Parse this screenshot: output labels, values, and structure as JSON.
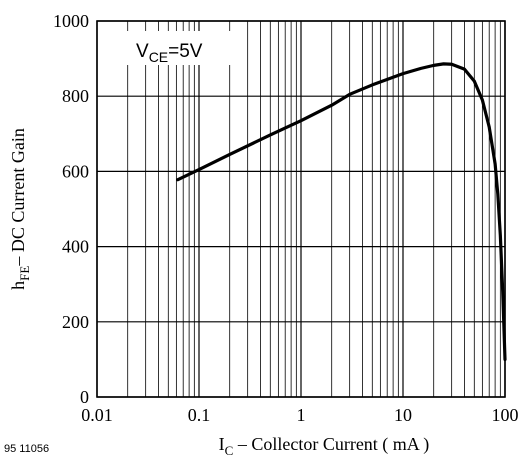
{
  "chart_data": {
    "type": "line",
    "xscale": "log",
    "xlim": [
      0.01,
      100
    ],
    "ylim": [
      0,
      1000
    ],
    "grid": true,
    "x_ticks": [
      {
        "value": 0.01,
        "label": "0.01"
      },
      {
        "value": 0.1,
        "label": "0.1"
      },
      {
        "value": 1,
        "label": "1"
      },
      {
        "value": 10,
        "label": "10"
      },
      {
        "value": 100,
        "label": "100"
      }
    ],
    "y_ticks": [
      {
        "value": 0,
        "label": "0"
      },
      {
        "value": 200,
        "label": "200"
      },
      {
        "value": 400,
        "label": "400"
      },
      {
        "value": 600,
        "label": "600"
      },
      {
        "value": 800,
        "label": "800"
      },
      {
        "value": 1000,
        "label": "1000"
      }
    ],
    "xlabel": {
      "main": "I",
      "sub": "C",
      "rest": " – Collector Current ( mA )"
    },
    "ylabel": {
      "main": "h",
      "sub": "FE",
      "rest": "– DC Current Gain"
    },
    "annotation": {
      "main": "V",
      "sub": "CE",
      "rest": "=5V"
    },
    "series": [
      {
        "x": [
          0.062,
          0.1,
          0.2,
          0.5,
          1,
          2,
          3,
          5,
          10,
          15,
          20,
          25,
          30,
          40,
          50,
          60,
          70,
          80,
          85,
          90,
          95,
          100
        ],
        "y": [
          578,
          605,
          645,
          697,
          735,
          776,
          805,
          830,
          860,
          874,
          882,
          886,
          885,
          872,
          840,
          790,
          718,
          620,
          540,
          430,
          280,
          100
        ]
      }
    ]
  },
  "figure_id": "95 11056"
}
